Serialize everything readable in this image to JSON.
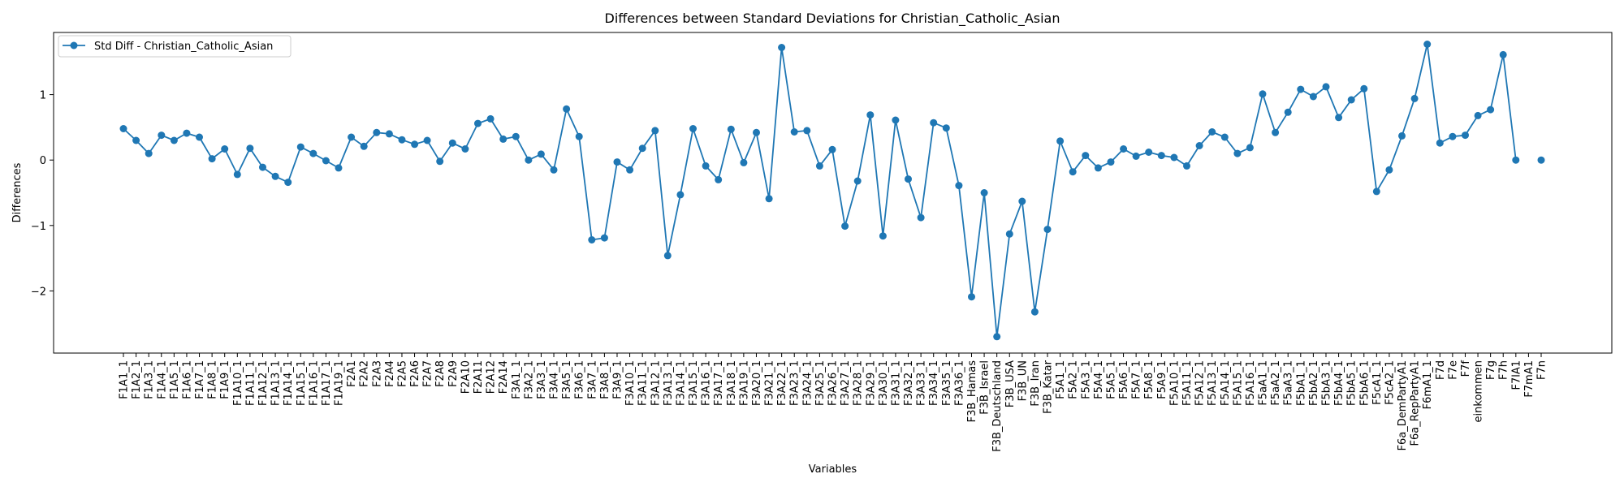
{
  "colors": {
    "series": "#1f77b4",
    "axis": "#000000",
    "legend_border": "#cccccc"
  },
  "chart_data": {
    "type": "line",
    "title": "Differences between Standard Deviations for Christian_Catholic_Asian",
    "xlabel": "Variables",
    "ylabel": "Differences",
    "ylim": [
      -2.95,
      1.95
    ],
    "yticks": [
      -2,
      -1,
      0,
      1
    ],
    "ytick_labels": [
      "−2",
      "−1",
      "0",
      "1"
    ],
    "grid": false,
    "legend_position": "top-left",
    "x": [
      "F1A1_1",
      "F1A2_1",
      "F1A3_1",
      "F1A4_1",
      "F1A5_1",
      "F1A6_1",
      "F1A7_1",
      "F1A8_1",
      "F1A9_1",
      "F1A10_1",
      "F1A11_1",
      "F1A12_1",
      "F1A13_1",
      "F1A14_1",
      "F1A15_1",
      "F1A16_1",
      "F1A17_1",
      "F1A19_1",
      "F2A1",
      "F2A2",
      "F2A3",
      "F2A4",
      "F2A5",
      "F2A6",
      "F2A7",
      "F2A8",
      "F2A9",
      "F2A10",
      "F2A11",
      "F2A12",
      "F2A14",
      "F3A1_1",
      "F3A2_1",
      "F3A3_1",
      "F3A4_1",
      "F3A5_1",
      "F3A6_1",
      "F3A7_1",
      "F3A8_1",
      "F3A9_1",
      "F3A10_1",
      "F3A11_1",
      "F3A12_1",
      "F3A13_1",
      "F3A14_1",
      "F3A15_1",
      "F3A16_1",
      "F3A17_1",
      "F3A18_1",
      "F3A19_1",
      "F3A20_1",
      "F3A21_1",
      "F3A22_1",
      "F3A23_1",
      "F3A24_1",
      "F3A25_1",
      "F3A26_1",
      "F3A27_1",
      "F3A28_1",
      "F3A29_1",
      "F3A30_1",
      "F3A31_1",
      "F3A32_1",
      "F3A33_1",
      "F3A34_1",
      "F3A35_1",
      "F3A36_1",
      "F3B_Hamas",
      "F3B_Israel",
      "F3B_Deutschland",
      "F3B_USA",
      "F3B_UN",
      "F3B_Iran",
      "F3B_Katar",
      "F5A1_1",
      "F5A2_1",
      "F5A3_1",
      "F5A4_1",
      "F5A5_1",
      "F5A6_1",
      "F5A7_1",
      "F5A8_1",
      "F5A9_1",
      "F5A10_1",
      "F5A11_1",
      "F5A12_1",
      "F5A13_1",
      "F5A14_1",
      "F5A15_1",
      "F5A16_1",
      "F5aA1_1",
      "F5aA2_1",
      "F5aA3_1",
      "F5bA1_1",
      "F5bA2_1",
      "F5bA3_1",
      "F5bA4_1",
      "F5bA5_1",
      "F5bA6_1",
      "F5cA1_1",
      "F5cA2_1",
      "F6a_DemPartyA1",
      "F6a_RepPartyA1",
      "F6mA1_1",
      "F7d",
      "F7e",
      "F7f",
      "einkommen",
      "F7g",
      "F7h",
      "F7lA1",
      "F7mA1",
      "F7n"
    ],
    "series": [
      {
        "name": "Std Diff - Christian_Catholic_Asian",
        "values": [
          0.48,
          0.3,
          0.1,
          0.38,
          0.3,
          0.41,
          0.35,
          0.02,
          0.17,
          -0.22,
          0.18,
          -0.11,
          -0.25,
          -0.34,
          0.2,
          0.1,
          -0.01,
          -0.12,
          0.35,
          0.21,
          0.42,
          0.4,
          0.31,
          0.24,
          0.3,
          -0.02,
          0.26,
          0.17,
          0.56,
          0.63,
          0.32,
          0.36,
          0.0,
          0.09,
          -0.15,
          0.78,
          0.36,
          -1.22,
          -1.19,
          -0.03,
          -0.15,
          0.18,
          0.45,
          -1.46,
          -0.53,
          0.48,
          -0.09,
          -0.3,
          0.47,
          -0.04,
          0.42,
          -0.59,
          1.72,
          0.43,
          0.45,
          -0.09,
          0.16,
          -1.01,
          -0.32,
          0.69,
          -1.16,
          0.61,
          -0.29,
          -0.88,
          0.57,
          0.49,
          -0.39,
          -2.09,
          -0.5,
          -2.7,
          -1.13,
          -0.63,
          -2.32,
          -1.06,
          0.29,
          -0.18,
          0.07,
          -0.12,
          -0.03,
          0.17,
          0.06,
          0.12,
          0.07,
          0.04,
          -0.09,
          0.22,
          0.43,
          0.35,
          0.1,
          0.19,
          1.01,
          0.42,
          0.73,
          1.08,
          0.97,
          1.12,
          0.65,
          0.92,
          1.09,
          -0.48,
          -0.15,
          0.37,
          0.94,
          1.77,
          0.26,
          0.36,
          0.38,
          0.68,
          0.77,
          1.61,
          0.0,
          null,
          0.0
        ]
      }
    ]
  }
}
